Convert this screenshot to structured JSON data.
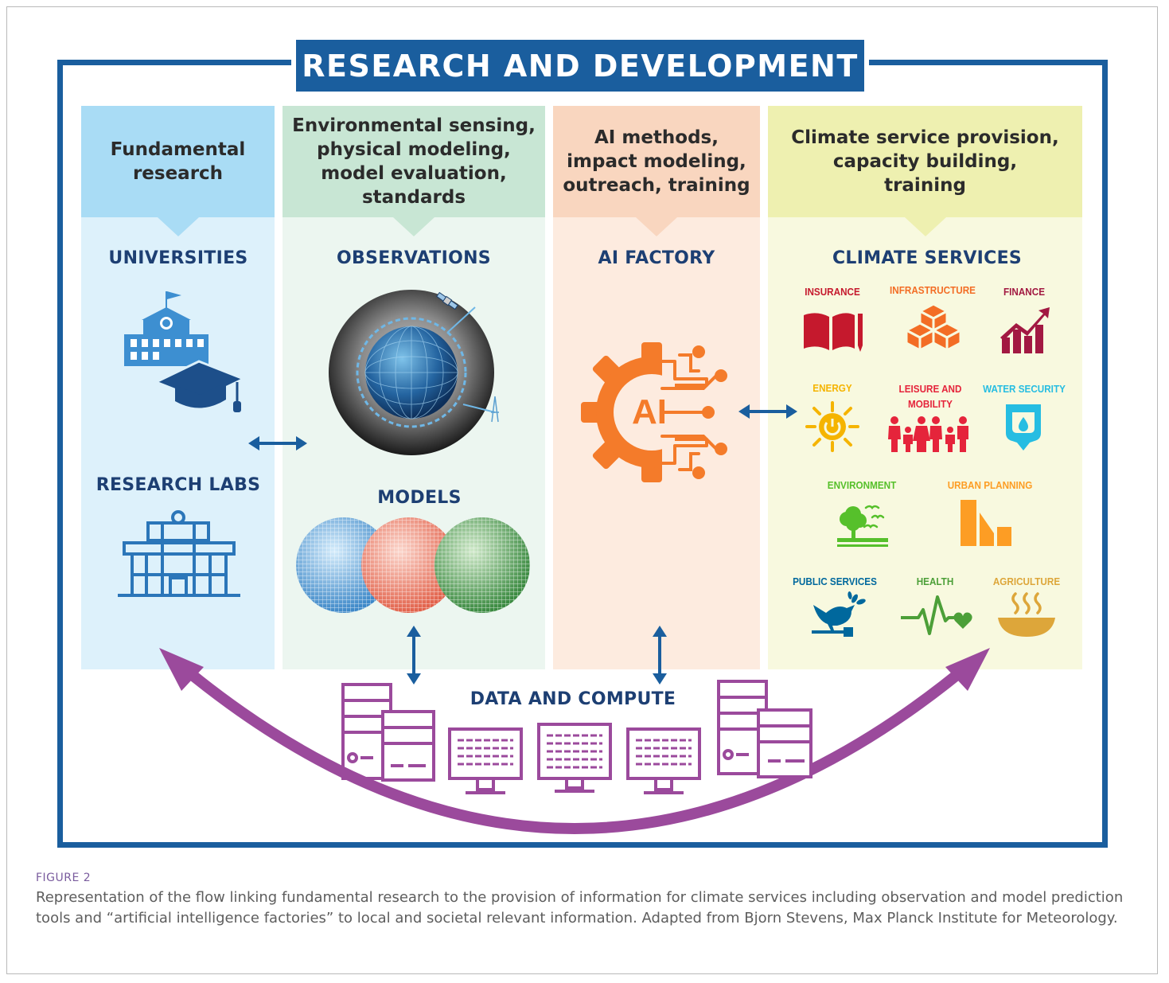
{
  "title": "RESEARCH AND DEVELOPMENT",
  "columns": [
    {
      "heading": "Fundamental\nresearch",
      "head_color": "#a9dcf5",
      "body_color": "#ddf1fb",
      "pointer_color": "#a9dcf5"
    },
    {
      "heading": "Environmental sensing,\nphysical modeling,\nmodel evaluation,\nstandards",
      "head_color": "#c8e6d4",
      "body_color": "#ecf6f0",
      "pointer_color": "#c8e6d4"
    },
    {
      "heading": "AI methods,\nimpact modeling,\noutreach, training",
      "head_color": "#f9d6bf",
      "body_color": "#fdebdf",
      "pointer_color": "#f9d6bf"
    },
    {
      "heading": "Climate service provision,\ncapacity building,\ntraining",
      "head_color": "#eef0b0",
      "body_color": "#f8f9df",
      "pointer_color": "#eef0b0"
    }
  ],
  "sections": {
    "universities": "UNIVERSITIES",
    "research_labs": "RESEARCH LABS",
    "observations": "OBSERVATIONS",
    "models": "MODELS",
    "ai_factory": "AI FACTORY",
    "ai_icon_text": "AI",
    "climate_services": "CLIMATE SERVICES",
    "data_and_compute": "DATA AND COMPUTE"
  },
  "services": [
    {
      "label": "INSURANCE",
      "color": "#c5192d"
    },
    {
      "label": "INFRASTRUCTURE",
      "color": "#f36d25"
    },
    {
      "label": "FINANCE",
      "color": "#a21942"
    },
    {
      "label": "ENERGY",
      "color": "#f5b400"
    },
    {
      "label": "LEISURE AND\nMOBILITY",
      "color": "#e5243b"
    },
    {
      "label": "WATER SECURITY",
      "color": "#26bde2"
    },
    {
      "label": "ENVIRONMENT",
      "color": "#56c02b"
    },
    {
      "label": "URBAN PLANNING",
      "color": "#fd9d24"
    },
    {
      "label": "PUBLIC SERVICES",
      "color": "#00689d"
    },
    {
      "label": "HEALTH",
      "color": "#4c9f38"
    },
    {
      "label": "AGRICULTURE",
      "color": "#dda63a"
    }
  ],
  "colors": {
    "frame": "#1a5e9e",
    "section_text": "#1d3f73",
    "arrow": "#1a5e9e",
    "arc": "#9b4a9c",
    "compute": "#9b4a9c",
    "ai_orange": "#f47b2a"
  },
  "figure": {
    "number": "FIGURE 2",
    "caption": "Representation of the flow linking fundamental research to the provision of information for climate services including observation and model prediction tools and “artificial intelligence factories” to local and societal relevant information. Adapted from Bjorn Stevens, Max Planck Institute for Meteorology."
  }
}
